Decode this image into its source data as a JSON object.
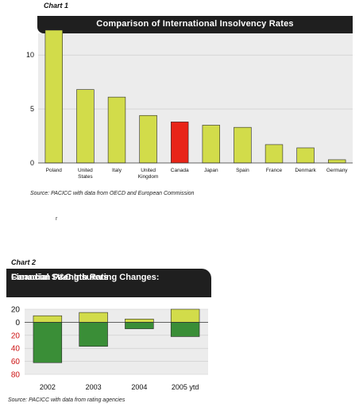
{
  "chart1": {
    "label": "Chart 1",
    "title": "Comparison of International Insolvency Rates",
    "source": "Source: PACICC with data from OECD and European Commission",
    "highlight_color": "#e82418",
    "bar_color": "#d2dc4a"
  },
  "stray_mark": "r",
  "chart2": {
    "label": "Chart 2",
    "title_line1": "Financial Strength Rating Changes:",
    "title_line2": "Canadian P&C Insurers",
    "source": "Source: PACICC with data from rating agencies",
    "up_color": "#d2dc4a",
    "down_color": "#3a8e37"
  },
  "chart_data": [
    {
      "type": "bar",
      "title": "Comparison of International Insolvency Rates",
      "categories": [
        "Poland",
        "United States",
        "Italy",
        "United Kingdom",
        "Canada",
        "Japan",
        "Spain",
        "France",
        "Denmark",
        "Germany"
      ],
      "category_lines": [
        [
          "Poland"
        ],
        [
          "United",
          "States"
        ],
        [
          "Italy"
        ],
        [
          "United",
          "Kingdom"
        ],
        [
          "Canada"
        ],
        [
          "Japan"
        ],
        [
          "Spain"
        ],
        [
          "France"
        ],
        [
          "Denmark"
        ],
        [
          "Germany"
        ]
      ],
      "values": [
        12.3,
        6.8,
        6.1,
        4.4,
        3.8,
        3.5,
        3.3,
        1.7,
        1.4,
        0.3
      ],
      "highlight": "Canada",
      "ylim": [
        0,
        12
      ],
      "yticks": [
        0,
        5,
        10
      ],
      "grid": true
    },
    {
      "type": "bar",
      "title": "Financial Strength Rating Changes: Canadian P&C Insurers",
      "categories": [
        "2002",
        "2003",
        "2004",
        "2005 ytd"
      ],
      "series": [
        {
          "values": [
            10,
            15,
            5,
            20
          ]
        },
        {
          "values": [
            -62,
            -37,
            -10,
            -22
          ]
        }
      ],
      "ylim": [
        -80,
        20
      ],
      "yticks": [
        20,
        0,
        -20,
        -40,
        -60,
        -80
      ],
      "ytick_labels": [
        "20",
        "0",
        "20",
        "40",
        "60",
        "80"
      ],
      "negative_tick_color": "#cc1111",
      "grid": true
    }
  ]
}
